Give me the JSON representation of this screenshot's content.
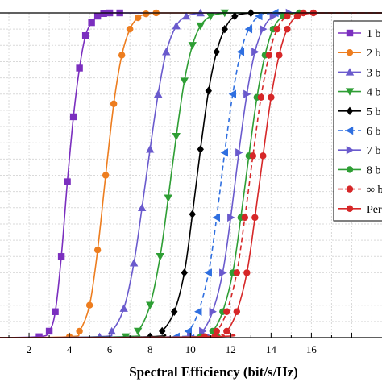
{
  "chart_data": {
    "type": "line",
    "title": "",
    "xlabel": "Spectral Efficiency (bit/s/Hz)",
    "ylabel": "",
    "xlim": [
      0,
      19.5
    ],
    "ylim": [
      0,
      1
    ],
    "x_ticks": [
      2,
      4,
      6,
      8,
      10,
      12,
      14,
      16
    ],
    "grid": true,
    "legend_position": "right",
    "series": [
      {
        "name": "1 b",
        "color": "#7b2fbf",
        "marker": "square",
        "line": "solid",
        "x": [
          0,
          2.5,
          3.0,
          3.3,
          3.6,
          3.9,
          4.2,
          4.5,
          4.8,
          5.1,
          5.4,
          5.7,
          6.0,
          6.5
        ],
        "y": [
          0,
          0.003,
          0.02,
          0.08,
          0.25,
          0.48,
          0.68,
          0.83,
          0.93,
          0.97,
          0.99,
          0.998,
          1.0,
          1.0
        ]
      },
      {
        "name": "2 b",
        "color": "#ed7d1f",
        "marker": "circle",
        "line": "solid",
        "x": [
          0,
          4.0,
          4.5,
          5.0,
          5.4,
          5.8,
          6.2,
          6.6,
          7.0,
          7.4,
          7.8,
          8.3
        ],
        "y": [
          0,
          0.003,
          0.02,
          0.1,
          0.27,
          0.5,
          0.72,
          0.87,
          0.95,
          0.985,
          0.997,
          1.0
        ]
      },
      {
        "name": "3 b",
        "color": "#6a5acd",
        "marker": "triangle-up",
        "line": "solid",
        "x": [
          0,
          5.5,
          6.1,
          6.7,
          7.2,
          7.6,
          8.0,
          8.4,
          8.8,
          9.3,
          9.8,
          10.5
        ],
        "y": [
          0,
          0.003,
          0.02,
          0.09,
          0.23,
          0.4,
          0.58,
          0.75,
          0.88,
          0.96,
          0.99,
          1.0
        ]
      },
      {
        "name": "4 b",
        "color": "#2e9e34",
        "marker": "triangle-down",
        "line": "solid",
        "x": [
          0,
          6.8,
          7.4,
          8.0,
          8.5,
          8.9,
          9.3,
          9.7,
          10.1,
          10.5,
          11.0,
          11.7
        ],
        "y": [
          0,
          0.003,
          0.02,
          0.1,
          0.25,
          0.43,
          0.62,
          0.79,
          0.9,
          0.96,
          0.99,
          1.0
        ]
      },
      {
        "name": "5 b",
        "color": "#000000",
        "marker": "diamond",
        "line": "solid",
        "x": [
          0,
          8.0,
          8.6,
          9.2,
          9.7,
          10.1,
          10.5,
          10.9,
          11.3,
          11.7,
          12.2,
          13.0
        ],
        "y": [
          0,
          0.003,
          0.02,
          0.08,
          0.2,
          0.38,
          0.58,
          0.76,
          0.88,
          0.95,
          0.99,
          1.0
        ]
      },
      {
        "name": "6 b",
        "color": "#2f6fe0",
        "marker": "triangle-left",
        "line": "dashed",
        "x": [
          0,
          9.3,
          9.9,
          10.4,
          10.9,
          11.3,
          11.7,
          12.1,
          12.5,
          12.9,
          13.4,
          14.2
        ],
        "y": [
          0,
          0.003,
          0.02,
          0.08,
          0.2,
          0.37,
          0.57,
          0.75,
          0.88,
          0.95,
          0.99,
          1.0
        ]
      },
      {
        "name": "7 b",
        "color": "#6a5acd",
        "marker": "triangle-right",
        "line": "solid",
        "x": [
          0,
          10.0,
          10.6,
          11.1,
          11.6,
          12.0,
          12.4,
          12.8,
          13.2,
          13.6,
          14.1,
          14.9
        ],
        "y": [
          0,
          0.003,
          0.02,
          0.08,
          0.2,
          0.37,
          0.57,
          0.75,
          0.88,
          0.95,
          0.99,
          1.0
        ]
      },
      {
        "name": "8 b",
        "color": "#2e9e34",
        "marker": "circle",
        "line": "solid",
        "x": [
          0,
          10.5,
          11.1,
          11.6,
          12.1,
          12.5,
          12.9,
          13.3,
          13.7,
          14.1,
          14.6,
          15.4
        ],
        "y": [
          0,
          0.003,
          0.02,
          0.08,
          0.2,
          0.37,
          0.56,
          0.74,
          0.87,
          0.95,
          0.99,
          1.0
        ]
      },
      {
        "name": "∞ b",
        "color": "#d62728",
        "marker": "circle",
        "line": "dashed",
        "x": [
          0,
          10.7,
          11.3,
          11.8,
          12.3,
          12.7,
          13.1,
          13.5,
          13.9,
          14.3,
          14.8,
          15.6
        ],
        "y": [
          0,
          0.003,
          0.02,
          0.08,
          0.2,
          0.37,
          0.56,
          0.74,
          0.87,
          0.95,
          0.99,
          1.0
        ]
      },
      {
        "name": "Per",
        "color": "#d62728",
        "marker": "circle",
        "line": "solid",
        "x": [
          0,
          11.2,
          11.8,
          12.3,
          12.8,
          13.2,
          13.6,
          14.0,
          14.4,
          14.8,
          15.3,
          16.1
        ],
        "y": [
          0,
          0.003,
          0.02,
          0.08,
          0.2,
          0.37,
          0.56,
          0.74,
          0.87,
          0.95,
          0.99,
          1.0
        ]
      }
    ]
  }
}
